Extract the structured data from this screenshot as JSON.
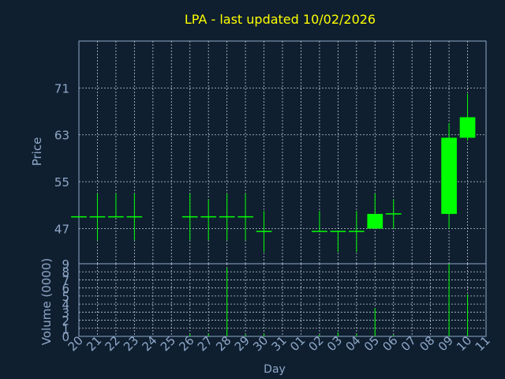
{
  "chart_data": [
    {
      "type": "candlestick",
      "title": "LPA - last updated 10/02/2026",
      "ylabel": "Price",
      "ylim": [
        41,
        79
      ],
      "yticks": [
        47,
        55,
        63,
        71
      ],
      "grid": true,
      "candles": [
        {
          "day": "20",
          "open": 49,
          "high": 49,
          "low": 49,
          "close": 49
        },
        {
          "day": "21",
          "open": 49,
          "high": 53,
          "low": 45,
          "close": 49
        },
        {
          "day": "22",
          "open": 49,
          "high": 53,
          "low": 49,
          "close": 49
        },
        {
          "day": "23",
          "open": 49,
          "high": 53,
          "low": 45,
          "close": 49
        },
        {
          "day": "26",
          "open": 49,
          "high": 53,
          "low": 45,
          "close": 49
        },
        {
          "day": "27",
          "open": 49,
          "high": 52,
          "low": 45,
          "close": 49
        },
        {
          "day": "28",
          "open": 49,
          "high": 53,
          "low": 45,
          "close": 49
        },
        {
          "day": "29",
          "open": 49,
          "high": 53,
          "low": 45,
          "close": 49
        },
        {
          "day": "30",
          "open": 46.5,
          "high": 50,
          "low": 43,
          "close": 46.5
        },
        {
          "day": "02",
          "open": 46.5,
          "high": 50,
          "low": 46.5,
          "close": 46.5
        },
        {
          "day": "03",
          "open": 46.5,
          "high": 46.5,
          "low": 43,
          "close": 46.5
        },
        {
          "day": "04",
          "open": 46.5,
          "high": 50,
          "low": 43,
          "close": 46.5
        },
        {
          "day": "05",
          "open": 47,
          "high": 53,
          "low": 47,
          "close": 49.5
        },
        {
          "day": "06",
          "open": 49.5,
          "high": 52,
          "low": 47,
          "close": 49.5
        },
        {
          "day": "09",
          "open": 49.5,
          "high": 65,
          "low": 47,
          "close": 62.5
        },
        {
          "day": "10",
          "open": 62.5,
          "high": 70,
          "low": 62,
          "close": 66
        }
      ]
    },
    {
      "type": "bar",
      "ylabel": "Volume (0000)",
      "xlabel": "Day",
      "ylim": [
        0,
        9
      ],
      "yticks": [
        0,
        1,
        2,
        3,
        4,
        5,
        6,
        7,
        8,
        9
      ],
      "categories": [
        "20",
        "21",
        "22",
        "23",
        "24",
        "25",
        "26",
        "27",
        "28",
        "29",
        "30",
        "31",
        "01",
        "02",
        "03",
        "04",
        "05",
        "06",
        "07",
        "08",
        "09",
        "10",
        "11"
      ],
      "values": [
        0,
        0,
        0,
        0,
        0,
        0,
        0.3,
        0.3,
        8.5,
        0.2,
        0.3,
        0,
        0,
        0.2,
        0.5,
        0.3,
        3.5,
        0.2,
        0,
        0,
        9,
        5.2,
        0
      ]
    }
  ],
  "colors": {
    "background": "#0f1f30",
    "axis": "#8fa8c8",
    "grid": "#c0c8d0",
    "title": "#ffff00",
    "candle": "#00ff00",
    "label": "#8fa8c8"
  }
}
